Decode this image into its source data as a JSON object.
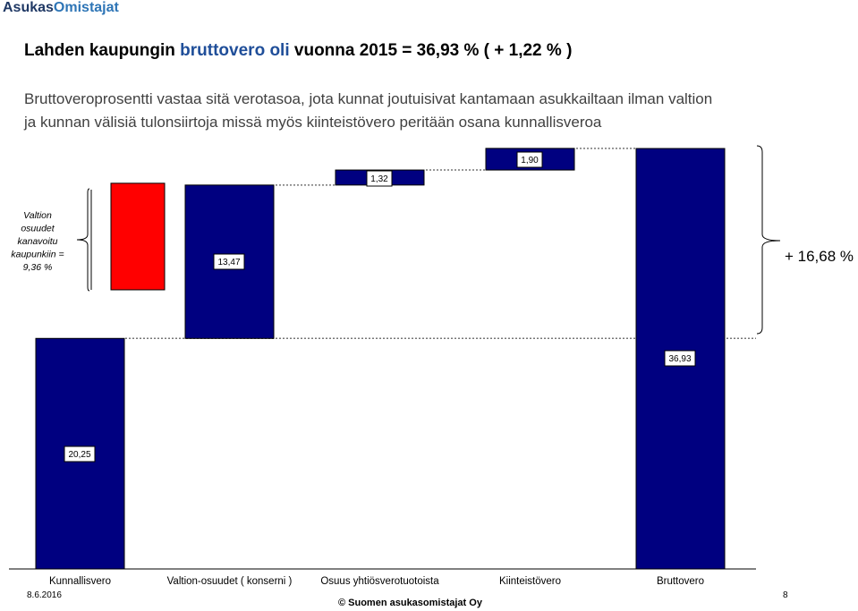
{
  "header": {
    "logo_part1": "Asukas",
    "logo_part2": "Omistajat",
    "title_part1": "Lahden kaupungin ",
    "title_highlight": "bruttovero oli",
    "title_part2": " vuonna 2015 = 36,93 % ( + 1,22 % )",
    "desc_line1": "Bruttoveroprosentti vastaa sitä verotasoa, jota kunnat joutuisivat kantamaan asukkailtaan ilman valtion",
    "desc_line2": "ja kunnan välisiä tulonsiirtoja missä myös kiinteistövero peritään osana kunnallisveroa"
  },
  "chart_data": {
    "type": "bar",
    "subtype": "waterfall",
    "categories": [
      "Kunnallisvero",
      "Valtion-osuudet ( konserni )",
      "Osuus yhtiösverotuotoista",
      "Kiinteistövero",
      "Bruttovero"
    ],
    "bars": [
      {
        "category": "Kunnallisvero",
        "start": 0,
        "end": 20.25,
        "label": "20,25",
        "color": "#000080"
      },
      {
        "category": "Valtion-osuudet ( konserni )",
        "start": 20.25,
        "end": 33.72,
        "label": "13,47",
        "color": "#000080"
      },
      {
        "category": "Osuus yhtiösverotuotoista",
        "start": 33.72,
        "end": 35.04,
        "label": "1,32",
        "color": "#000080"
      },
      {
        "category": "Kiinteistövero",
        "start": 35.04,
        "end": 36.94,
        "label": "1,90",
        "color": "#000080"
      },
      {
        "category": "Bruttovero",
        "start": 0,
        "end": 36.93,
        "label": "36,93",
        "color": "#000080"
      }
    ],
    "side_bar": {
      "value": 9.36,
      "color": "#ff0000"
    },
    "left_annotation": [
      "Valtion",
      "osuudet",
      "kanavoitu",
      "kaupunkiin =",
      "9,36 %"
    ],
    "right_annotation": "+ 16,68 %",
    "ylim": [
      0,
      36.93
    ]
  },
  "footer": {
    "date": "8.6.2016",
    "page": "8",
    "copyright": "© Suomen asukasomistajat Oy"
  }
}
